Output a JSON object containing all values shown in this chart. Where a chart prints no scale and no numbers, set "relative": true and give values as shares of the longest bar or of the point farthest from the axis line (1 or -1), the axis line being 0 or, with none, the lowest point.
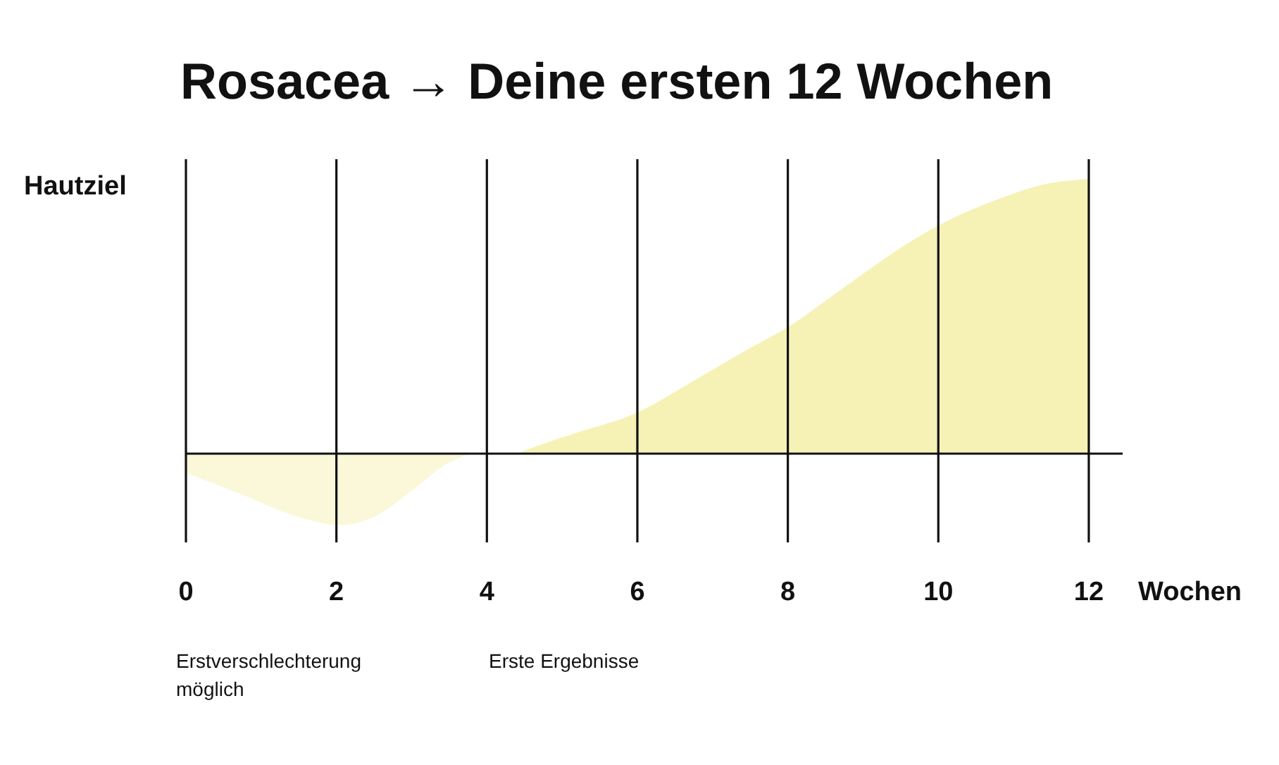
{
  "chart_data": {
    "type": "area",
    "title": "Rosacea → Deine ersten 12 Wochen",
    "xlabel": "Wochen",
    "ylabel": "Hautziel",
    "relative": true,
    "xlim": [
      0,
      12.45
    ],
    "xticks": [
      0,
      2,
      4,
      6,
      8,
      10,
      12
    ],
    "grid": "x",
    "series": [
      {
        "color": "#faf8d9",
        "x": [
          0,
          0.75,
          1.49,
          2.06,
          2.5,
          3.07,
          3.45,
          3.77
        ],
        "values": [
          -0.07,
          -0.15,
          -0.23,
          -0.26,
          -0.23,
          -0.12,
          -0.04,
          0
        ]
      },
      {
        "color": "#f6f2b6",
        "x": [
          4.4,
          4.79,
          5.12,
          6,
          6.84,
          7.47,
          8,
          8.72,
          9.62,
          10,
          10.83,
          11.4,
          12
        ],
        "values": [
          0,
          0.04,
          0.07,
          0.15,
          0.28,
          0.38,
          0.46,
          0.6,
          0.77,
          0.83,
          0.93,
          0.98,
          1
        ]
      }
    ],
    "annotations": [
      "Erstverschlechterung möglich",
      "Erste Ergebnisse"
    ]
  }
}
